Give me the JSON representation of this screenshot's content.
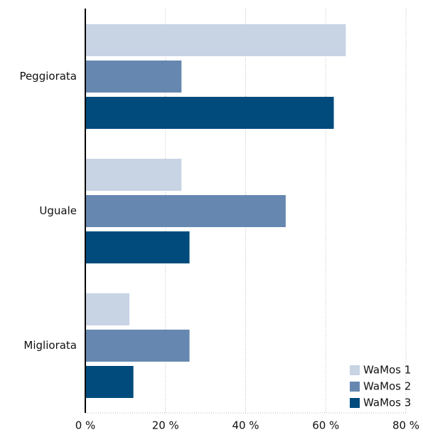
{
  "chart_data": {
    "type": "barh",
    "categories": [
      "Peggiorata",
      "Uguale",
      "Migliorata"
    ],
    "series": [
      {
        "name": "WaMos 1",
        "color": "#c8d3e4",
        "values": [
          65,
          24,
          11
        ]
      },
      {
        "name": "WaMos 2",
        "color": "#6688b0",
        "values": [
          24,
          50,
          26
        ]
      },
      {
        "name": "WaMos 3",
        "color": "#004b7c",
        "values": [
          62,
          26,
          12
        ]
      }
    ],
    "xlim": [
      0,
      80
    ],
    "xticks": [
      {
        "value": 0,
        "label": "0 %"
      },
      {
        "value": 20,
        "label": "20 %"
      },
      {
        "value": 40,
        "label": "40 %"
      },
      {
        "value": 60,
        "label": "60 %"
      },
      {
        "value": 80,
        "label": "80 %"
      }
    ],
    "grid": true,
    "legend": "lower right"
  }
}
